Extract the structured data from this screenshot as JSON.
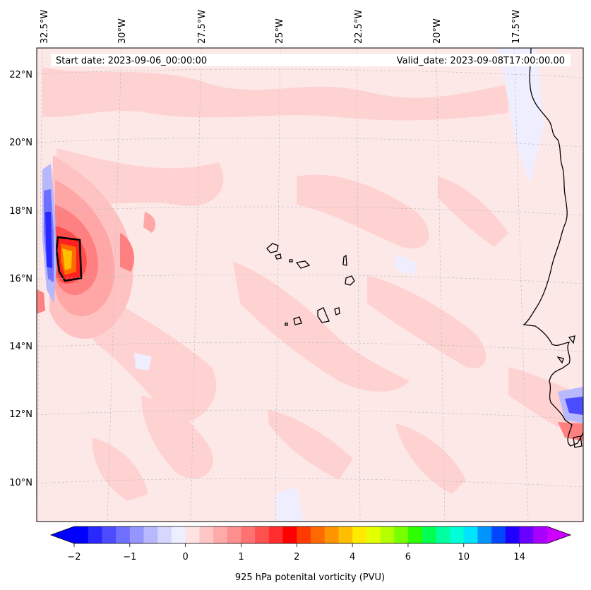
{
  "map": {
    "start_date": "Start date: 2023-09-06_00:00:00",
    "valid_date": "Valid_date: 2023-09-08T17:00:00.00",
    "lon_labels": [
      "32.5°W",
      "30°W",
      "27.5°W",
      "25°W",
      "22.5°W",
      "20°W",
      "17.5°W"
    ],
    "lat_labels": [
      "22°N",
      "20°N",
      "18°N",
      "16°N",
      "14°N",
      "12°N",
      "10°N"
    ],
    "background_color": "#fde8e8"
  },
  "colorbar": {
    "label": "925 hPa potenital vorticity (PVU)",
    "tick_labels": [
      "−2",
      "−1",
      "0",
      "1",
      "2",
      "4",
      "6",
      "10",
      "14"
    ],
    "colors": [
      "#0000ff",
      "#2828ff",
      "#4b4bff",
      "#7070ff",
      "#9595ff",
      "#b8b8ff",
      "#d6d6ff",
      "#eeeeff",
      "#ffe3e3",
      "#ffc6c6",
      "#ffaaaa",
      "#ff8e8e",
      "#ff7272",
      "#ff5050",
      "#ff2d2d",
      "#ff0000",
      "#ff3a00",
      "#ff6a00",
      "#ff9400",
      "#ffbe00",
      "#ffea00",
      "#e4ff00",
      "#b4ff00",
      "#78ff00",
      "#2dff00",
      "#00ff50",
      "#00ff9e",
      "#00ffd8",
      "#00e4ff",
      "#0094ff",
      "#0046ff",
      "#1e00ff",
      "#6a00ff",
      "#a800ff"
    ],
    "under_color": "#0000ff",
    "over_color": "#cc00ff"
  }
}
